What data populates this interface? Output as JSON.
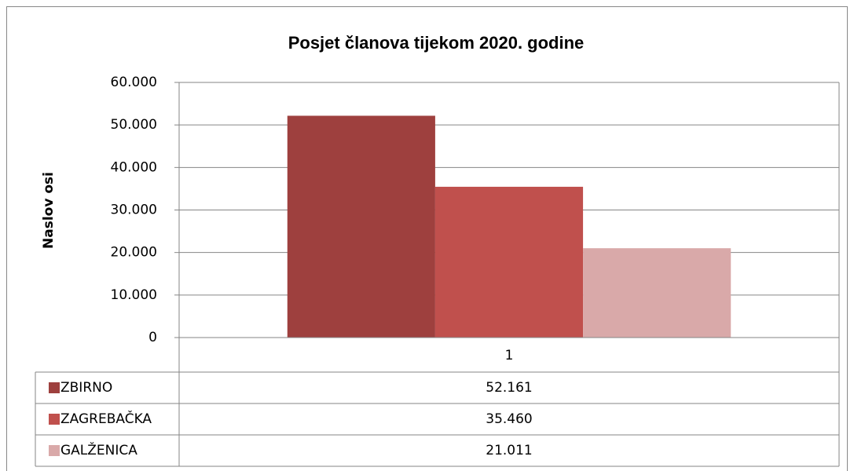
{
  "chart_data": {
    "type": "bar",
    "title": "Posjet članova tijekom 2020. godine",
    "y_label": "Naslov osi",
    "categories": [
      "1"
    ],
    "series": [
      {
        "name": "ZBIRNO",
        "color": "#9e403e",
        "values": [
          52161
        ],
        "value_labels": [
          "52.161"
        ]
      },
      {
        "name": "ZAGREBAČKA",
        "color": "#c0504d",
        "values": [
          35460
        ],
        "value_labels": [
          "35.460"
        ]
      },
      {
        "name": "GALŽENICA",
        "color": "#d9a9a9",
        "values": [
          21011
        ],
        "value_labels": [
          "21.011"
        ]
      }
    ],
    "ylim": [
      0,
      60000
    ],
    "yticks": [
      0,
      {
        "value": 10000,
        "label": "10.000"
      },
      {
        "value": 20000,
        "label": "20.000"
      },
      {
        "value": 30000,
        "label": "30.000"
      },
      {
        "value": 40000,
        "label": "40.000"
      },
      {
        "value": 50000,
        "label": "50.000"
      },
      {
        "value": 60000,
        "label": "60.000"
      }
    ],
    "grid": true,
    "data_table": true
  }
}
